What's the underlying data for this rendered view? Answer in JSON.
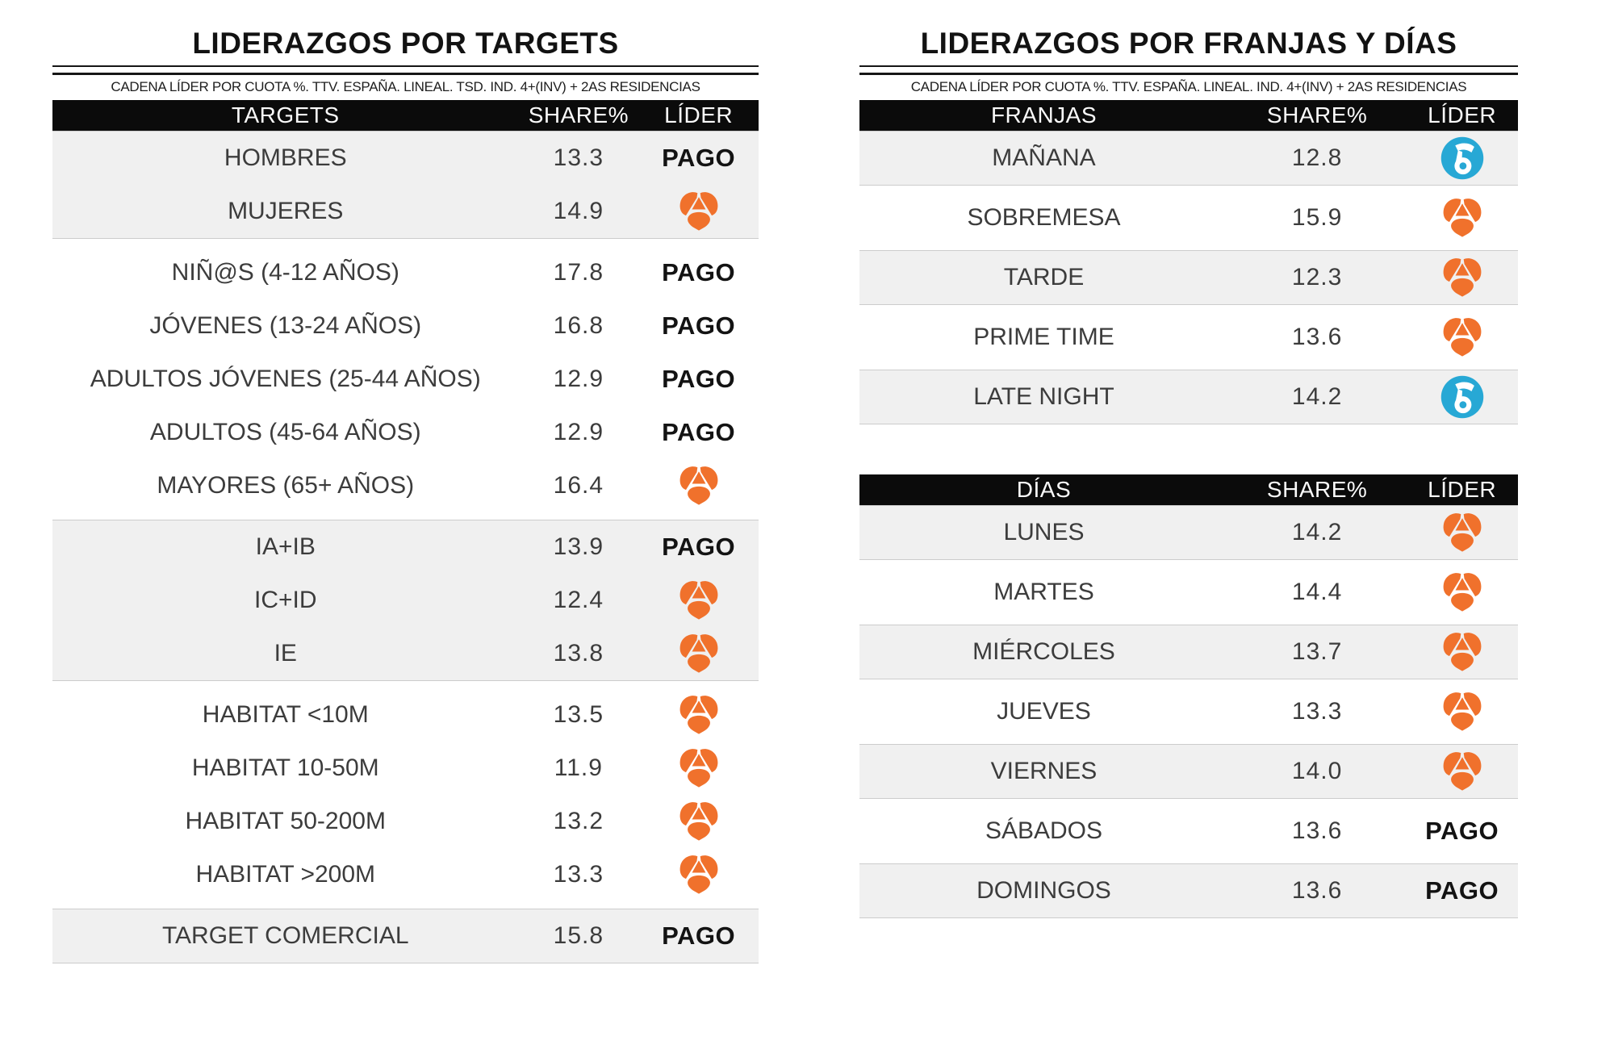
{
  "page": {
    "background": "#ffffff"
  },
  "colors": {
    "antena3_orange": "#F0712C",
    "telecinco_blue": "#27A8D5",
    "row_shade": "#F0F0F0",
    "header_bar": "#0B0B0B",
    "group_border": "#CCCCCC",
    "body_text": "#3C3C3C"
  },
  "leader_labels": {
    "PAGO": "PAGO"
  },
  "leader_names": {
    "PAGO": "Pago",
    "A3": "Antena 3",
    "T5": "Telecinco"
  },
  "chart_data": [
    {
      "type": "table",
      "title": "LIDERAZGOS POR TARGETS",
      "subtitle": "CADENA LÍDER POR CUOTA %. TTV. ESPAÑA. LINEAL. TSD. IND. 4+(INV) + 2AS RESIDENCIAS",
      "columns": [
        "TARGETS",
        "SHARE%",
        "LÍDER"
      ],
      "groups": [
        {
          "shaded": true,
          "rows": [
            {
              "label": "HOMBRES",
              "share": "13.3",
              "leader": "PAGO"
            },
            {
              "label": "MUJERES",
              "share": "14.9",
              "leader": "A3"
            }
          ]
        },
        {
          "shaded": false,
          "rows": [
            {
              "label": "NIÑ@S (4-12 AÑOS)",
              "share": "17.8",
              "leader": "PAGO"
            },
            {
              "label": "JÓVENES (13-24 AÑOS)",
              "share": "16.8",
              "leader": "PAGO"
            },
            {
              "label": "ADULTOS JÓVENES (25-44 AÑOS)",
              "share": "12.9",
              "leader": "PAGO"
            },
            {
              "label": "ADULTOS (45-64 AÑOS)",
              "share": "12.9",
              "leader": "PAGO"
            },
            {
              "label": "MAYORES (65+ AÑOS)",
              "share": "16.4",
              "leader": "A3"
            }
          ]
        },
        {
          "shaded": true,
          "rows": [
            {
              "label": "IA+IB",
              "share": "13.9",
              "leader": "PAGO"
            },
            {
              "label": "IC+ID",
              "share": "12.4",
              "leader": "A3"
            },
            {
              "label": "IE",
              "share": "13.8",
              "leader": "A3"
            }
          ]
        },
        {
          "shaded": false,
          "rows": [
            {
              "label": "HABITAT <10M",
              "share": "13.5",
              "leader": "A3"
            },
            {
              "label": "HABITAT 10-50M",
              "share": "11.9",
              "leader": "A3"
            },
            {
              "label": "HABITAT 50-200M",
              "share": "13.2",
              "leader": "A3"
            },
            {
              "label": "HABITAT >200M",
              "share": "13.3",
              "leader": "A3"
            }
          ]
        },
        {
          "shaded": true,
          "rows": [
            {
              "label": "TARGET COMERCIAL",
              "share": "15.8",
              "leader": "PAGO"
            }
          ]
        }
      ]
    },
    {
      "type": "table",
      "title": "LIDERAZGOS POR FRANJAS Y DÍAS",
      "subtitle": "CADENA LÍDER POR CUOTA %. TTV. ESPAÑA. LINEAL. IND. 4+(INV) + 2AS RESIDENCIAS",
      "sections": [
        {
          "columns": [
            "FRANJAS",
            "SHARE%",
            "LÍDER"
          ],
          "rows": [
            {
              "label": "MAÑANA",
              "share": "12.8",
              "leader": "T5"
            },
            {
              "label": "SOBREMESA",
              "share": "15.9",
              "leader": "A3"
            },
            {
              "label": "TARDE",
              "share": "12.3",
              "leader": "A3"
            },
            {
              "label": "PRIME TIME",
              "share": "13.6",
              "leader": "A3"
            },
            {
              "label": "LATE NIGHT",
              "share": "14.2",
              "leader": "T5"
            }
          ]
        },
        {
          "columns": [
            "DÍAS",
            "SHARE%",
            "LÍDER"
          ],
          "rows": [
            {
              "label": "LUNES",
              "share": "14.2",
              "leader": "A3"
            },
            {
              "label": "MARTES",
              "share": "14.4",
              "leader": "A3"
            },
            {
              "label": "MIÉRCOLES",
              "share": "13.7",
              "leader": "A3"
            },
            {
              "label": "JUEVES",
              "share": "13.3",
              "leader": "A3"
            },
            {
              "label": "VIERNES",
              "share": "14.0",
              "leader": "A3"
            },
            {
              "label": "SÁBADOS",
              "share": "13.6",
              "leader": "PAGO"
            },
            {
              "label": "DOMINGOS",
              "share": "13.6",
              "leader": "PAGO"
            }
          ]
        }
      ]
    }
  ]
}
